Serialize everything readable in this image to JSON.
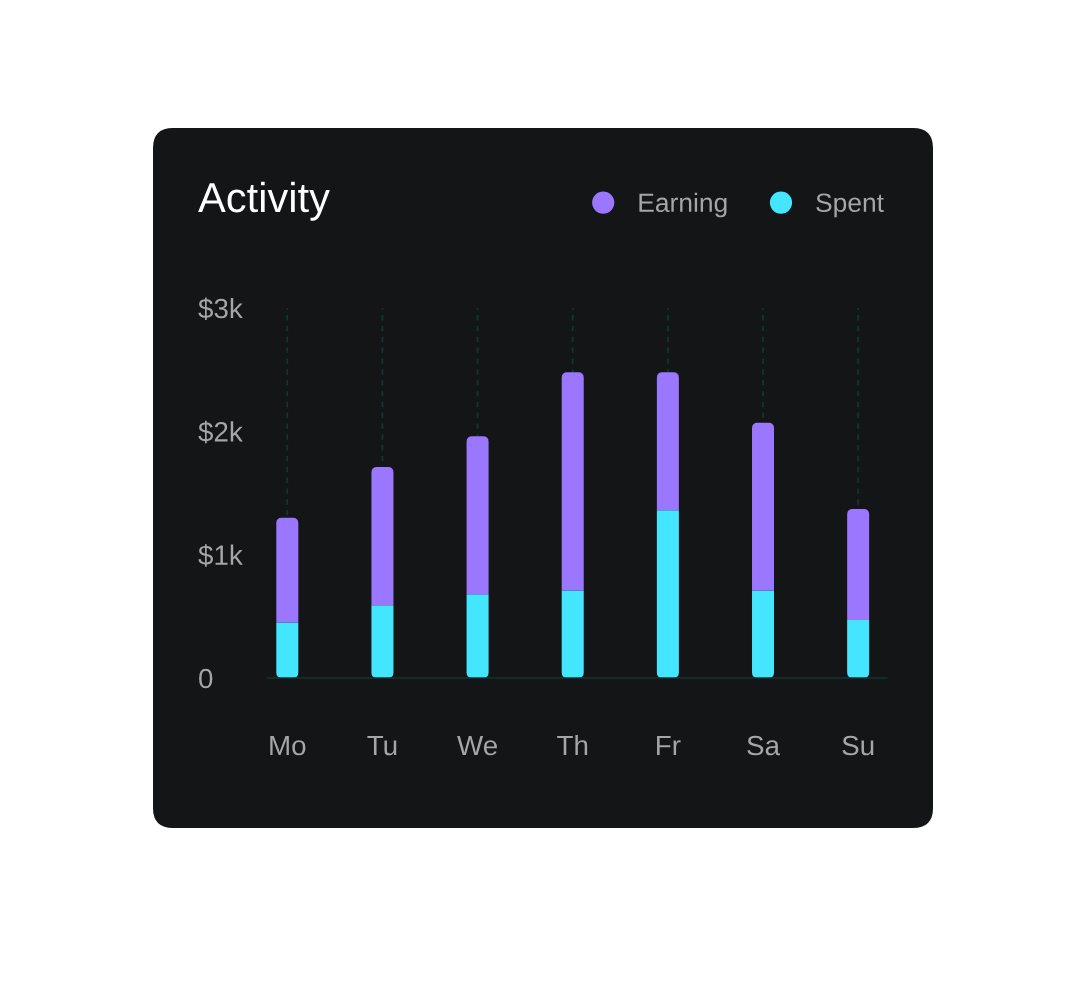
{
  "chart_data": {
    "type": "bar",
    "title": "Activity",
    "categories": [
      "Mo",
      "Tu",
      "We",
      "Th",
      "Fr",
      "Sa",
      "Su"
    ],
    "stacked": true,
    "series": [
      {
        "name": "Spent",
        "color": "#44e6ff",
        "values": [
          0.45,
          0.59,
          0.68,
          0.71,
          1.36,
          0.71,
          0.47
        ]
      },
      {
        "name": "Earning",
        "color": "#9b77ff",
        "values": [
          0.85,
          1.12,
          1.28,
          1.77,
          1.12,
          1.36,
          0.9
        ]
      }
    ],
    "ylim": [
      0,
      3
    ],
    "yticks": [
      0,
      {
        "value": 1,
        "label": "$1k"
      },
      {
        "value": 2,
        "label": "$2k"
      },
      {
        "value": 3,
        "label": "$3k"
      }
    ],
    "grid": "x",
    "legend": "top right"
  }
}
